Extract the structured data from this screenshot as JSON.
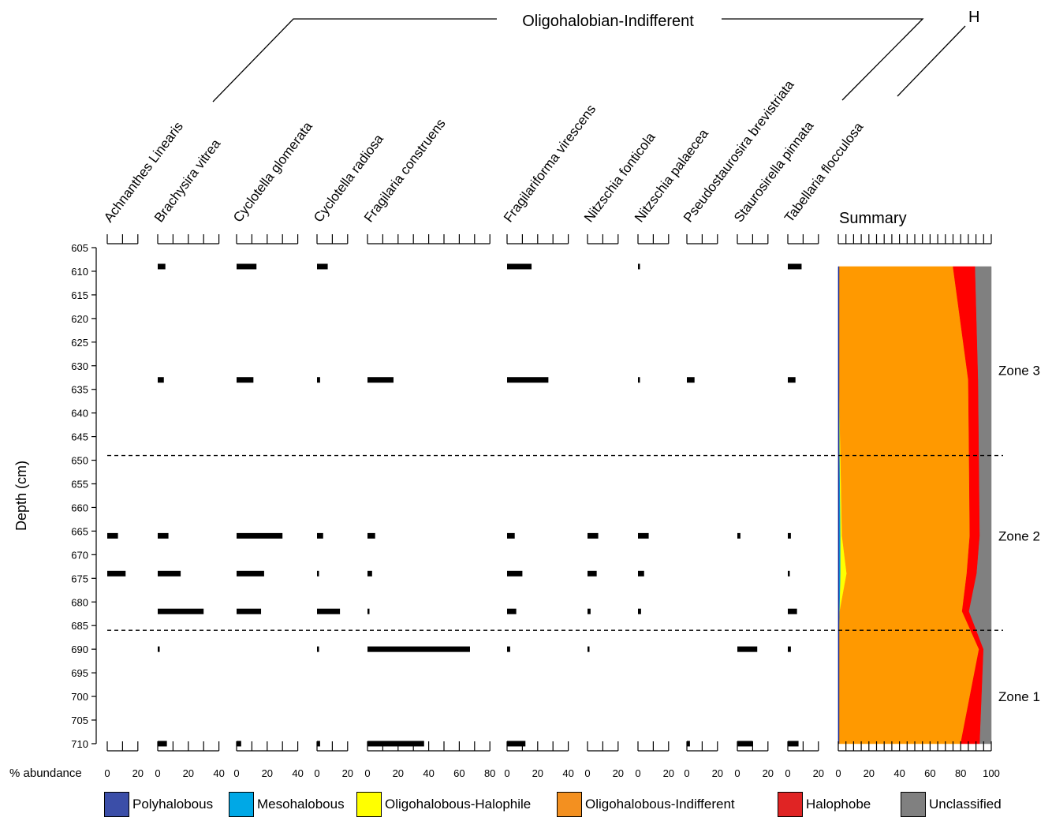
{
  "chart_data": {
    "type": "bar",
    "subtype": "stratigraphic-diatom-diagram",
    "ylabel": "Depth (cm)",
    "xlabel": "% abundance",
    "y_reversed": true,
    "ylim": [
      605,
      712
    ],
    "depth_ticks": [
      605,
      610,
      615,
      620,
      625,
      630,
      635,
      640,
      645,
      650,
      655,
      660,
      665,
      670,
      675,
      680,
      685,
      690,
      695,
      700,
      705,
      710
    ],
    "depths": [
      609,
      633,
      666,
      674,
      682,
      690,
      710
    ],
    "groups": [
      {
        "label": "Oligohalobian-Indifferent",
        "first_taxon": 0,
        "last_taxon": 9
      },
      {
        "label": "H",
        "first_taxon": 10,
        "last_taxon": 10
      }
    ],
    "taxa": [
      {
        "name": "Achnanthes Linearis",
        "scale_max": 20,
        "tick_step": 10,
        "tick_labels": [
          0,
          20
        ],
        "values": [
          0,
          0,
          7,
          12,
          0,
          0,
          0
        ]
      },
      {
        "name": "Brachysira vitrea",
        "scale_max": 40,
        "tick_step": 10,
        "tick_labels": [
          0,
          20,
          40
        ],
        "values": [
          5,
          4,
          7,
          15,
          30,
          1,
          6
        ]
      },
      {
        "name": "Cyclotella glomerata",
        "scale_max": 40,
        "tick_step": 10,
        "tick_labels": [
          0,
          20,
          40
        ],
        "values": [
          13,
          11,
          30,
          18,
          16,
          0,
          3
        ]
      },
      {
        "name": "Cyclotella radiosa",
        "scale_max": 20,
        "tick_step": 10,
        "tick_labels": [
          0,
          20
        ],
        "values": [
          7,
          2,
          4,
          1,
          15,
          1,
          2
        ]
      },
      {
        "name": "Fragilaria construens",
        "scale_max": 80,
        "tick_step": 10,
        "tick_labels": [
          0,
          20,
          40,
          60,
          80
        ],
        "values": [
          0,
          17,
          5,
          3,
          1,
          67,
          37
        ]
      },
      {
        "name": "Fragilariforma virescens",
        "scale_max": 40,
        "tick_step": 10,
        "tick_labels": [
          0,
          20,
          40
        ],
        "values": [
          16,
          27,
          5,
          10,
          6,
          2,
          12
        ]
      },
      {
        "name": "Nitzschia fonticola",
        "scale_max": 20,
        "tick_step": 10,
        "tick_labels": [
          0,
          20
        ],
        "values": [
          0,
          0,
          7,
          6,
          2,
          1,
          0
        ]
      },
      {
        "name": "Nitzschia palaecea",
        "scale_max": 20,
        "tick_step": 10,
        "tick_labels": [
          0,
          20
        ],
        "values": [
          1,
          1,
          7,
          4,
          2,
          0,
          0
        ]
      },
      {
        "name": "Pseudostaurosira brevistriata",
        "scale_max": 20,
        "tick_step": 10,
        "tick_labels": [
          0,
          20
        ],
        "values": [
          0,
          5,
          0,
          0,
          0,
          0,
          2
        ]
      },
      {
        "name": "Staurosirella pinnata",
        "scale_max": 20,
        "tick_step": 10,
        "tick_labels": [
          0,
          20
        ],
        "values": [
          0,
          0,
          2,
          0,
          0,
          13,
          10
        ]
      },
      {
        "name": "Tabellaria flocculosa",
        "scale_max": 20,
        "tick_step": 10,
        "tick_labels": [
          0,
          20
        ],
        "values": [
          9,
          5,
          2,
          1,
          6,
          2,
          7
        ]
      }
    ],
    "summary": {
      "title": "Summary",
      "scale_max": 100,
      "tick_step": 5,
      "tick_labels": [
        0,
        20,
        40,
        60,
        80,
        100
      ],
      "depths": [
        609,
        633,
        649,
        666,
        674,
        682,
        690,
        710
      ],
      "categories": [
        {
          "name": "Polyhalobous",
          "color": "#3b4ea8",
          "values": [
            0.5,
            0.5,
            0.5,
            0.5,
            0.5,
            0.5,
            0.5,
            0.5
          ]
        },
        {
          "name": "Mesohalobous",
          "color": "#00a8e6",
          "values": [
            0,
            0,
            0.5,
            1,
            1,
            0.5,
            0,
            0
          ]
        },
        {
          "name": "Oligohalobous-Halophile",
          "color": "#ffff00",
          "values": [
            0,
            0,
            0.5,
            1,
            4,
            0,
            0,
            0
          ]
        },
        {
          "name": "Oligohalobous-Indifferent",
          "color": "#ff9900",
          "values": [
            74.5,
            84.5,
            84,
            83.5,
            78.5,
            80,
            91.5,
            79.5
          ]
        },
        {
          "name": "Halophobe",
          "color": "#ff0000",
          "values": [
            14.5,
            6.5,
            6.5,
            6.5,
            6.5,
            4.5,
            3,
            12.5
          ]
        },
        {
          "name": "Unclassified",
          "color": "#808080",
          "values": [
            10.5,
            8.5,
            8,
            7.5,
            9.5,
            14.5,
            5,
            7.5
          ]
        }
      ]
    },
    "zone_boundaries": [
      649,
      686
    ],
    "zones": [
      {
        "label": "Zone 3",
        "depth": 631
      },
      {
        "label": "Zone 2",
        "depth": 666
      },
      {
        "label": "Zone 1",
        "depth": 700
      }
    ]
  },
  "legend": [
    {
      "label": "Polyhalobous",
      "color": "#3b4ea8"
    },
    {
      "label": "Mesohalobous",
      "color": "#00a8e6"
    },
    {
      "label": "Oligohalobous-Halophile",
      "color": "#ffff00"
    },
    {
      "label": "Oligohalobous-Indifferent",
      "color": "#f39020"
    },
    {
      "label": "Halophobe",
      "color": "#e02424"
    },
    {
      "label": "Unclassified",
      "color": "#808080"
    }
  ]
}
